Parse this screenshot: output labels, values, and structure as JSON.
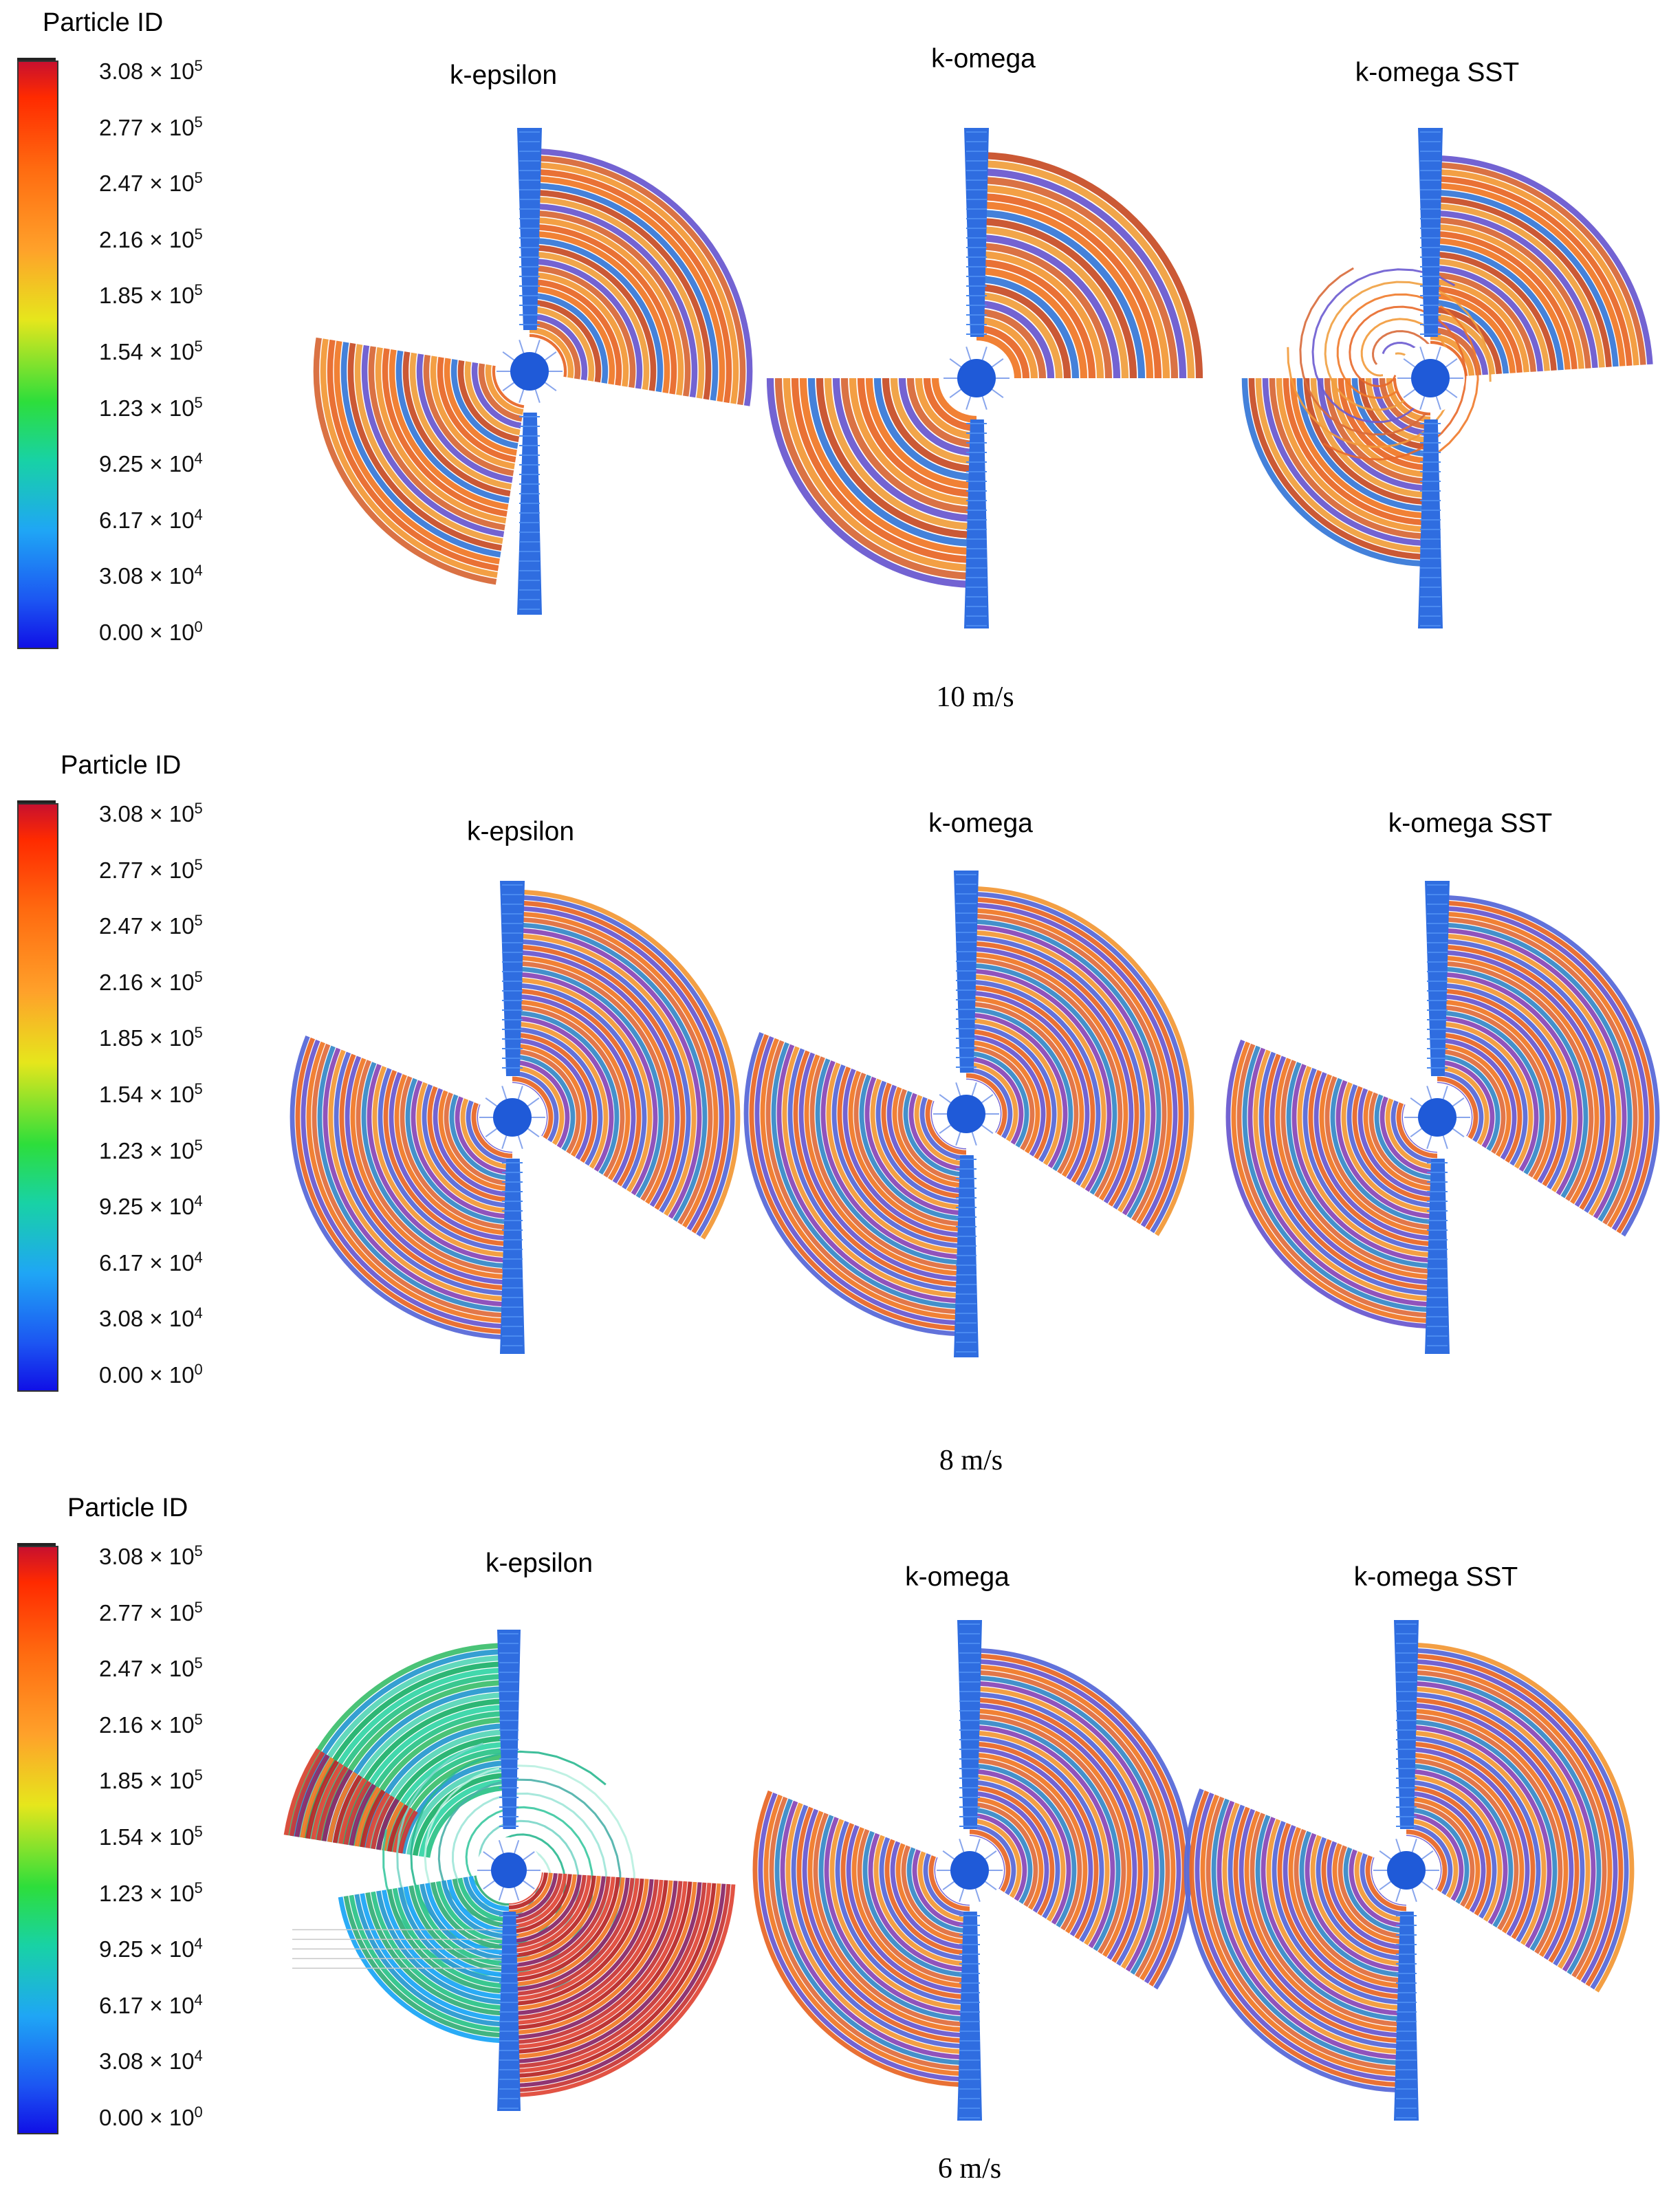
{
  "colorbar": {
    "title": "Particle ID",
    "ticks": [
      {
        "mant": "3.08",
        "exp": "5"
      },
      {
        "mant": "2.77",
        "exp": "5"
      },
      {
        "mant": "2.47",
        "exp": "5"
      },
      {
        "mant": "2.16",
        "exp": "5"
      },
      {
        "mant": "1.85",
        "exp": "5"
      },
      {
        "mant": "1.54",
        "exp": "5"
      },
      {
        "mant": "1.23",
        "exp": "5"
      },
      {
        "mant": "9.25",
        "exp": "4"
      },
      {
        "mant": "6.17",
        "exp": "4"
      },
      {
        "mant": "3.08",
        "exp": "4"
      },
      {
        "mant": "0.00",
        "exp": "0"
      }
    ],
    "times_symbol": "×",
    "base": "10"
  },
  "colors": {
    "blade": "#2f6de0",
    "hub": "#1f5ad8",
    "orange": "#f07a2a",
    "purple": "#6b5bd0",
    "green": "#2fc48a",
    "red": "#c83a3a"
  },
  "rows": [
    {
      "speed": "10 m/s",
      "panels": [
        {
          "model": "k-epsilon",
          "style": "orange"
        },
        {
          "model": "k-omega",
          "style": "orange"
        },
        {
          "model": "k-omega SST",
          "style": "orange"
        }
      ]
    },
    {
      "speed": "8 m/s",
      "panels": [
        {
          "model": "k-epsilon",
          "style": "purple"
        },
        {
          "model": "k-omega",
          "style": "purple"
        },
        {
          "model": "k-omega SST",
          "style": "purple"
        }
      ]
    },
    {
      "speed": "6 m/s",
      "panels": [
        {
          "model": "k-epsilon",
          "style": "mixed"
        },
        {
          "model": "k-omega",
          "style": "purple"
        },
        {
          "model": "k-omega SST",
          "style": "purple"
        }
      ]
    }
  ]
}
